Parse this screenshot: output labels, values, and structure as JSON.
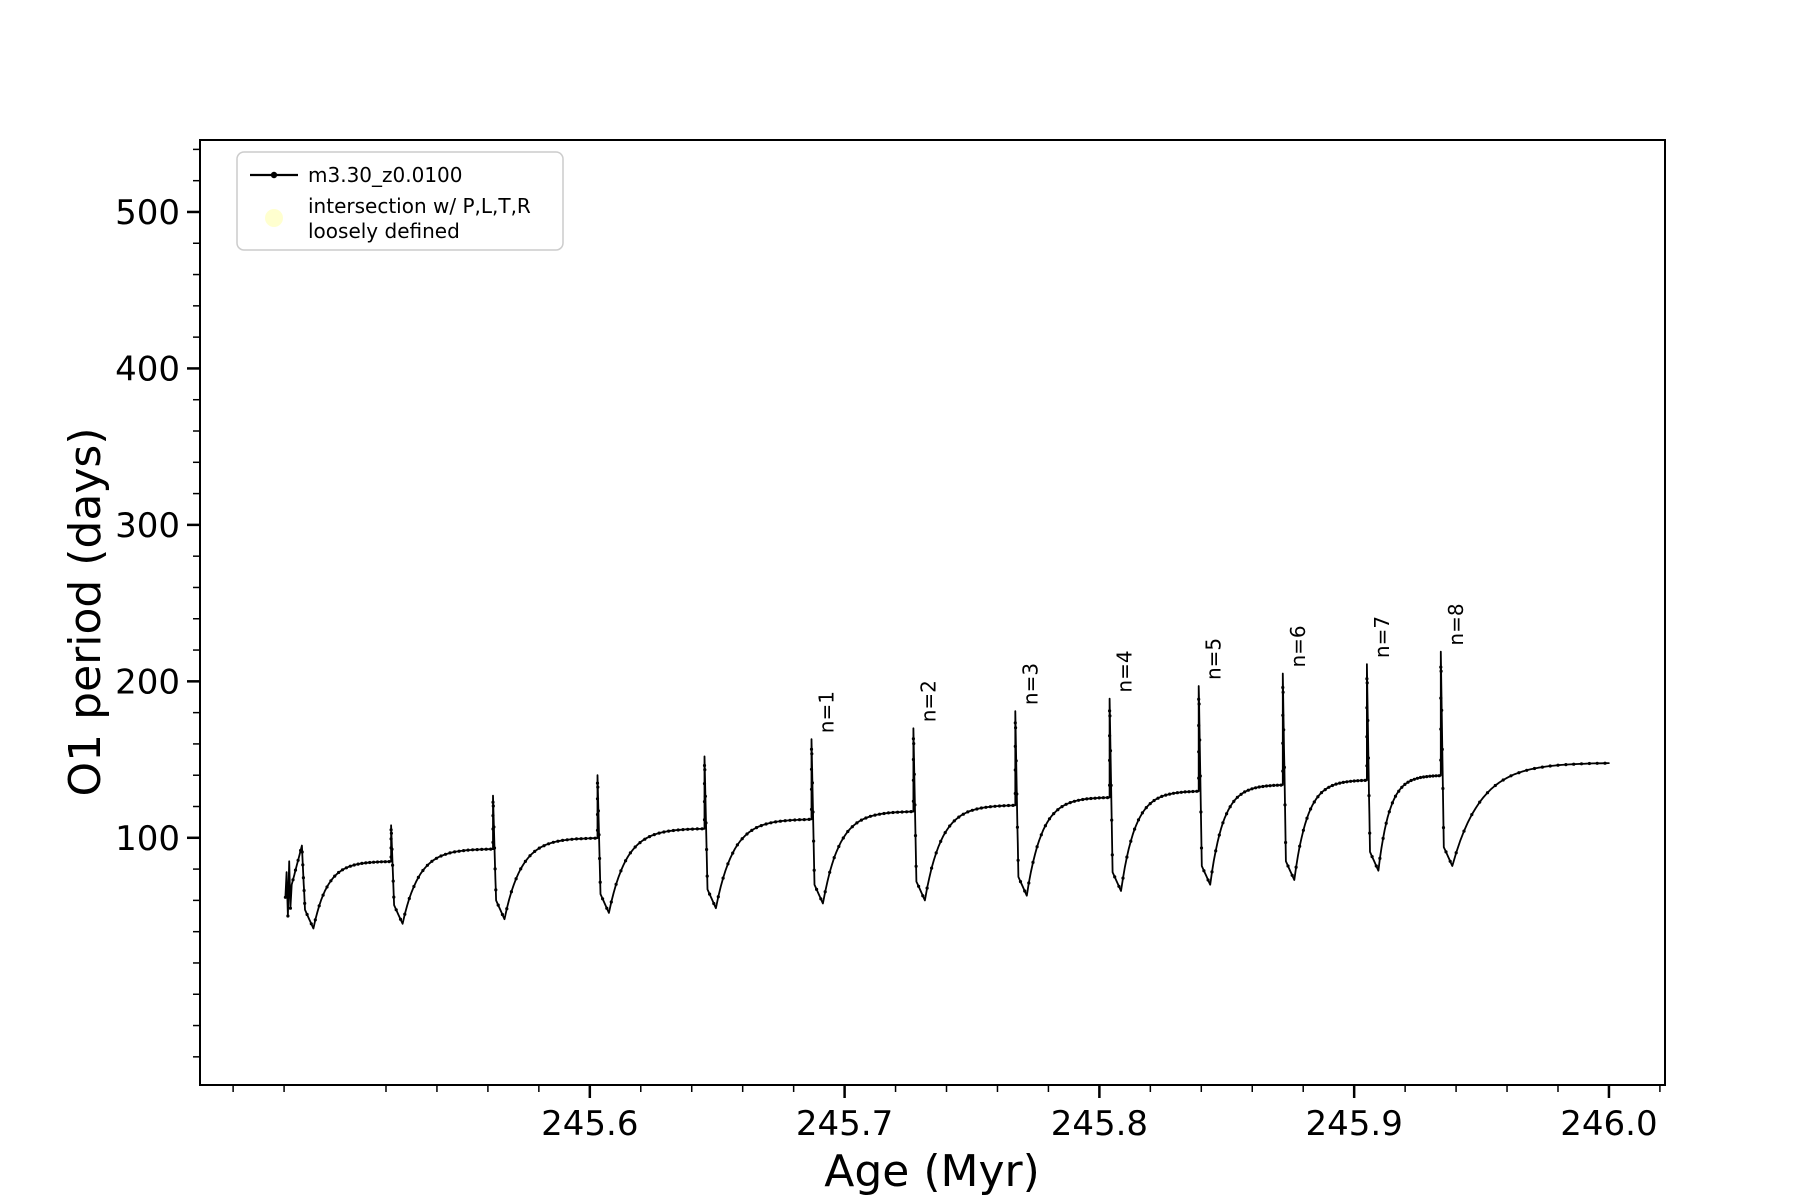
{
  "chart_data": {
    "type": "line",
    "title": "",
    "xlabel": "Age (Myr)",
    "ylabel": "O1 period (days)",
    "xlim": [
      245.447,
      246.022
    ],
    "ylim": [
      -58,
      546
    ],
    "xticks": [
      245.6,
      245.7,
      245.8,
      245.9,
      246.0
    ],
    "xtick_labels": [
      "245.6",
      "245.7",
      "245.8",
      "245.9",
      "246.0"
    ],
    "yticks": [
      100,
      200,
      300,
      400,
      500
    ],
    "ytick_labels": [
      "100",
      "200",
      "300",
      "400",
      "500"
    ],
    "x_minor_step": 0.02,
    "y_minor_step": 20,
    "grid": false,
    "legend_position": "upper left",
    "line_color": "#000000",
    "intersection_color": "#ffffcc",
    "legend": [
      {
        "label": "m3.30_z0.0100",
        "marker": "line-dot",
        "color": "#000000"
      },
      {
        "label_line1": "intersection w/ P,L,T,R",
        "label_line2": "loosely defined",
        "marker": "dot",
        "color": "#ffffcc"
      }
    ],
    "series": [
      {
        "name": "m3.30_z0.0100",
        "start_jitter": [
          [
            245.4805,
            62
          ],
          [
            245.481,
            78
          ],
          [
            245.4815,
            50
          ],
          [
            245.482,
            85
          ],
          [
            245.4825,
            55
          ],
          [
            245.483,
            70
          ]
        ],
        "end_x": 246.0,
        "final_plateau": 148,
        "pulses": [
          {
            "x": 245.487,
            "peak": 95,
            "drop_to": 42,
            "plateau_after": 85,
            "label": null
          },
          {
            "x": 245.522,
            "peak": 108,
            "drop_to": 45,
            "plateau_after": 93,
            "label": null
          },
          {
            "x": 245.562,
            "peak": 127,
            "drop_to": 48,
            "plateau_after": 100,
            "label": null
          },
          {
            "x": 245.603,
            "peak": 140,
            "drop_to": 52,
            "plateau_after": 106,
            "label": null
          },
          {
            "x": 245.645,
            "peak": 152,
            "drop_to": 55,
            "plateau_after": 112,
            "label": null
          },
          {
            "x": 245.687,
            "peak": 163,
            "drop_to": 58,
            "plateau_after": 117,
            "label": "n=1"
          },
          {
            "x": 245.727,
            "peak": 170,
            "drop_to": 60,
            "plateau_after": 121,
            "label": "n=2"
          },
          {
            "x": 245.767,
            "peak": 181,
            "drop_to": 63,
            "plateau_after": 126,
            "label": "n=3"
          },
          {
            "x": 245.804,
            "peak": 189,
            "drop_to": 66,
            "plateau_after": 130,
            "label": "n=4"
          },
          {
            "x": 245.839,
            "peak": 197,
            "drop_to": 70,
            "plateau_after": 134,
            "label": "n=5"
          },
          {
            "x": 245.872,
            "peak": 205,
            "drop_to": 73,
            "plateau_after": 137,
            "label": "n=6"
          },
          {
            "x": 245.905,
            "peak": 211,
            "drop_to": 79,
            "plateau_after": 140,
            "label": "n=7"
          },
          {
            "x": 245.934,
            "peak": 219,
            "drop_to": 82,
            "plateau_after": 148,
            "label": "n=8"
          }
        ]
      }
    ]
  }
}
